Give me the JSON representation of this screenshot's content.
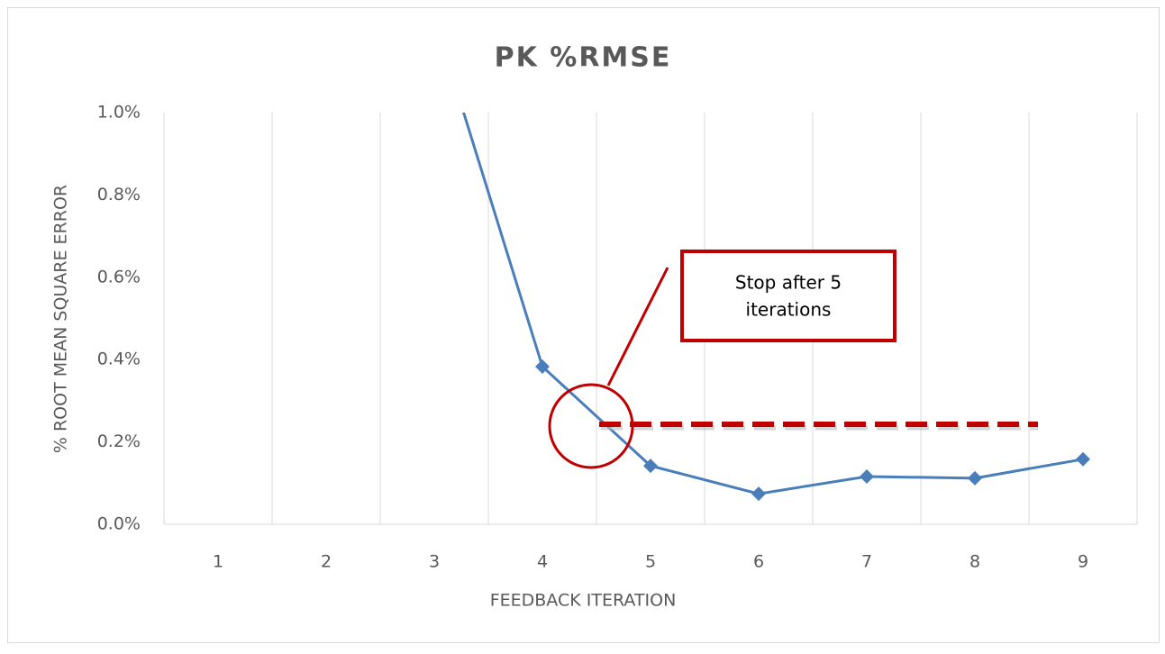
{
  "chart_data": {
    "type": "line",
    "title": "PK %RMSE",
    "x_label": "FEEDBACK ITERATION",
    "y_label": "% ROOT MEAN SQUARE ERROR",
    "categories": [
      "1",
      "2",
      "3",
      "4",
      "5",
      "6",
      "7",
      "8",
      "9"
    ],
    "series": [
      {
        "name": "PK %RMSE",
        "color": "#4a7ebb",
        "values": [
          null,
          null,
          1.23,
          0.383,
          0.142,
          0.074,
          0.116,
          0.112,
          0.158
        ]
      }
    ],
    "ylim": [
      0,
      1.0
    ],
    "yticks": [
      {
        "value": 0,
        "label": "0.0%"
      },
      {
        "value": 0.2,
        "label": "0.2%"
      },
      {
        "value": 0.4,
        "label": "0.4%"
      },
      {
        "value": 0.6,
        "label": "0.6%"
      },
      {
        "value": 0.8,
        "label": "0.8%"
      },
      {
        "value": 1.0,
        "label": "1.0%"
      }
    ],
    "grid": "x",
    "reference_line": {
      "value": 0.243,
      "color": "#c00000"
    },
    "annotation": {
      "lines": [
        "Stop after 5",
        "iterations"
      ],
      "color": "#c00000"
    }
  }
}
